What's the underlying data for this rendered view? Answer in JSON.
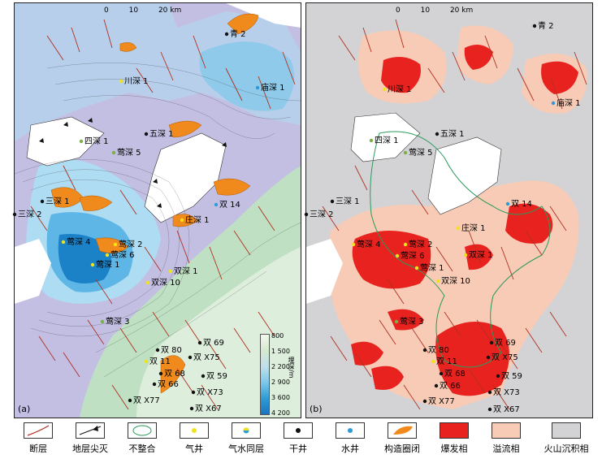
{
  "scale": {
    "ticks": [
      "0",
      "10",
      "20 km"
    ]
  },
  "panel_a": {
    "tag": "(a)",
    "wells": {
      "qing2": "青 2",
      "chuanshen1": "川深 1",
      "miaoshen1": "庙深 1",
      "sishen1": "四深 1",
      "wushen1": "五深 1",
      "yingshen5": "莺深 5",
      "shuang14": "双 14",
      "sanshen1": "三深 1",
      "sanshen2": "三深 2",
      "zhuangshen1": "庄深 1",
      "yingshen4": "莺深 4",
      "yingshen2": "莺深 2",
      "yingshen6": "莺深 6",
      "yingshen1": "莺深 1",
      "shuangshen1": "双深 1",
      "shuangshen10": "双深 10",
      "yingshen3": "莺深 3",
      "shuang69": "双 69",
      "shuang80": "双 80",
      "shuangX75": "双 X75",
      "shuang11": "双 11",
      "shuang68": "双 68",
      "shuang59": "双 59",
      "shuang66": "双 66",
      "shuangX73": "双 X73",
      "shuangX77": "双 X77",
      "shuangX67": "双 X67"
    },
    "colorbar": {
      "unit": "埋深/m",
      "values": [
        "800",
        "1 500",
        "2 200",
        "2 900",
        "3 600",
        "4 200"
      ]
    }
  },
  "panel_b": {
    "tag": "(b)",
    "wells": {
      "qing2": "青 2",
      "chuanshen1": "川深 1",
      "miaoshen1": "庙深 1",
      "sishen1": "四深 1",
      "wushen1": "五深 1",
      "yingshen5": "莺深 5",
      "shuang14": "双 14",
      "sanshen1": "三深 1",
      "sanshen2": "三深 2",
      "zhuangshen1": "庄深 1",
      "yingshen4": "莺深 4",
      "yingshen2": "莺深 2",
      "yingshen6": "莺深 6",
      "yingshen1": "莺深 1",
      "shuangshen1": "双深 1",
      "shuangshen10": "双深 10",
      "yingshen3": "莺深 3",
      "shuang69": "双 69",
      "shuang80": "双 80",
      "shuangX75": "双 X75",
      "shuang11": "双 11",
      "shuang68": "双 68",
      "shuang59": "双 59",
      "shuang66": "双 66",
      "shuangX73": "双 X73",
      "shuangX77": "双 X77",
      "shuangX67": "双 X67"
    }
  },
  "legend": [
    {
      "id": "fault",
      "label": "断层"
    },
    {
      "id": "pinchout",
      "label": "地层尖灭"
    },
    {
      "id": "unconformity",
      "label": "不整合"
    },
    {
      "id": "gas-well",
      "label": "气井"
    },
    {
      "id": "gas-water-well",
      "label": "气水同层"
    },
    {
      "id": "dry-well",
      "label": "干井"
    },
    {
      "id": "water-well",
      "label": "水井"
    },
    {
      "id": "trap",
      "label": "构造圈闭"
    },
    {
      "id": "explosive",
      "label": "爆发相"
    },
    {
      "id": "effusive",
      "label": "溢流相"
    },
    {
      "id": "volcano-sed",
      "label": "火山沉积相"
    }
  ],
  "colors": {
    "lavender": "#c3bfe3",
    "light_blue": "#aedcf2",
    "mid_blue": "#5db6e6",
    "deep_blue": "#1c82c8",
    "green": "#bfe0c2",
    "pale_green": "#ddeedd",
    "orange": "#f08a1c",
    "fault": "#b03020",
    "explosive": "#e8231f",
    "effusive": "#f7cbb6",
    "volcano_sed": "#d3d3d6"
  }
}
